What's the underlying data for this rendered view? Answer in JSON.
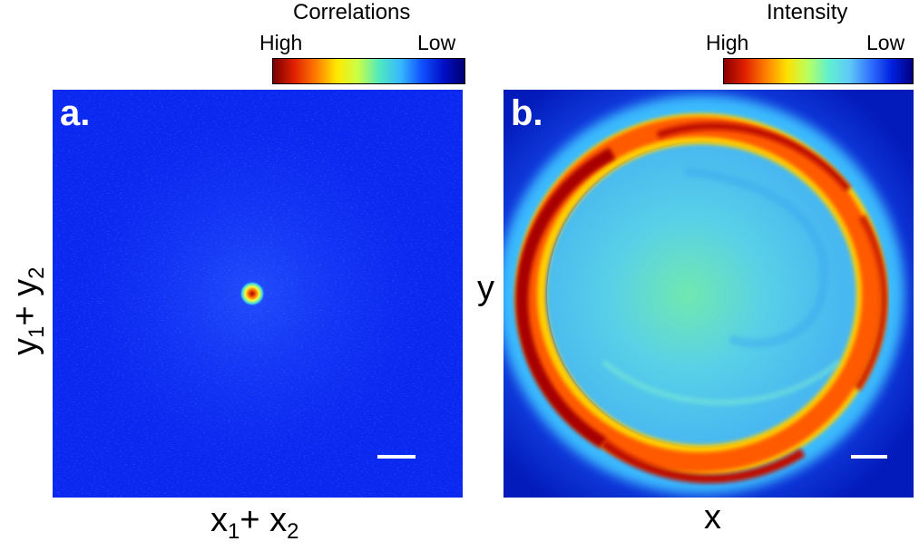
{
  "panel_a": {
    "label": "a.",
    "colorbar": {
      "title": "Correlations",
      "high": "High",
      "low": "Low",
      "colors": [
        "#7a0000",
        "#e02000",
        "#ff7a00",
        "#ffe800",
        "#c8ff48",
        "#50e8c0",
        "#38b8ff",
        "#1050ff",
        "#0010c8",
        "#000070"
      ]
    },
    "xlabel": {
      "main": "x",
      "s1": "1",
      "plus": "+ x",
      "s2": "2"
    },
    "ylabel": {
      "main": "y",
      "s1": "1",
      "plus": "+ y",
      "s2": "2"
    },
    "background_color": "#0a28f0"
  },
  "panel_b": {
    "label": "b.",
    "colorbar": {
      "title": "Intensity",
      "high": "High",
      "low": "Low",
      "colors": [
        "#8a0000",
        "#e02000",
        "#ff8000",
        "#ffe000",
        "#b8ff60",
        "#60f0d0",
        "#60c8f8",
        "#3070ff",
        "#0020e0",
        "#000080"
      ]
    },
    "xlabel": "x",
    "ylabel": "y",
    "background_color": "#1038e8"
  }
}
